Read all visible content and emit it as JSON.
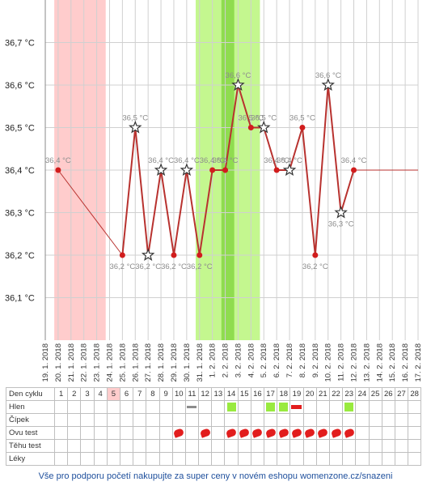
{
  "chart_data": {
    "type": "line",
    "ylabel_ticks": [
      "36,1 °C",
      "36,2 °C",
      "36,3 °C",
      "36,4 °C",
      "36,5 °C",
      "36,6 °C",
      "36,7 °C"
    ],
    "y_ticks": [
      36.1,
      36.2,
      36.3,
      36.4,
      36.5,
      36.6,
      36.7
    ],
    "ylim": [
      36.0,
      36.8
    ],
    "dates": [
      "19. 1. 2018",
      "20. 1. 2018",
      "21. 1. 2018",
      "22. 1. 2018",
      "23. 1. 2018",
      "24. 1. 2018",
      "25. 1. 2018",
      "26. 1. 2018",
      "27. 1. 2018",
      "28. 1. 2018",
      "29. 1. 2018",
      "30. 1. 2018",
      "31. 1. 2018",
      "1. 2. 2018",
      "2. 2. 2018",
      "3. 2. 2018",
      "4. 2. 2018",
      "5. 2. 2018",
      "6. 2. 2018",
      "7. 2. 2018",
      "8. 2. 2018",
      "9. 2. 2018",
      "10. 2. 2018",
      "11. 2. 2018",
      "12. 2. 2018",
      "13. 2. 2018",
      "14. 2. 2018",
      "15. 2. 2018",
      "16. 2. 2018",
      "17. 2. 2018"
    ],
    "points": [
      {
        "date_index": 1,
        "value": 36.4,
        "label": "36,4 °C",
        "star": false
      },
      {
        "date_index": 6,
        "value": 36.2,
        "label": "36,2 °C",
        "star": false
      },
      {
        "date_index": 7,
        "value": 36.5,
        "label": "36,5 °C",
        "star": true
      },
      {
        "date_index": 8,
        "value": 36.2,
        "label": "36,2 °C",
        "star": true
      },
      {
        "date_index": 9,
        "value": 36.4,
        "label": "36,4 °C",
        "star": true
      },
      {
        "date_index": 10,
        "value": 36.2,
        "label": "36,2 °C",
        "star": false
      },
      {
        "date_index": 11,
        "value": 36.4,
        "label": "36,4 °C",
        "star": true
      },
      {
        "date_index": 12,
        "value": 36.2,
        "label": "36,2 °C",
        "star": false
      },
      {
        "date_index": 13,
        "value": 36.4,
        "label": "36,4 °C",
        "star": false
      },
      {
        "date_index": 14,
        "value": 36.4,
        "label": "36,4 °C",
        "star": false
      },
      {
        "date_index": 15,
        "value": 36.6,
        "label": "36,6 °C",
        "star": true
      },
      {
        "date_index": 16,
        "value": 36.5,
        "label": "36,5 °C",
        "star": false
      },
      {
        "date_index": 17,
        "value": 36.5,
        "label": "36,5 °C",
        "star": true
      },
      {
        "date_index": 18,
        "value": 36.4,
        "label": "36,4 °C",
        "star": false
      },
      {
        "date_index": 19,
        "value": 36.4,
        "label": "36,4 °C",
        "star": true
      },
      {
        "date_index": 20,
        "value": 36.5,
        "label": "36,5 °C",
        "star": false
      },
      {
        "date_index": 21,
        "value": 36.2,
        "label": "36,2 °C",
        "star": false
      },
      {
        "date_index": 22,
        "value": 36.6,
        "label": "36,6 °C",
        "star": true
      },
      {
        "date_index": 23,
        "value": 36.3,
        "label": "36,3 °C",
        "star": true
      },
      {
        "date_index": 24,
        "value": 36.4,
        "label": "36,4 °C",
        "star": false
      }
    ],
    "trend_end": {
      "date_index": 29,
      "value": 36.4
    },
    "bands": [
      {
        "kind": "menstruation",
        "from_index": 0.7,
        "to_index": 4.7,
        "color": "#ffcccc"
      },
      {
        "kind": "fertile",
        "from_index": 11.7,
        "to_index": 16.7,
        "color": "#c4f78f"
      },
      {
        "kind": "ovulation",
        "from_index": 13.7,
        "to_index": 14.7,
        "color": "#8fdc4f"
      }
    ],
    "line_color": "#b8322f",
    "marker_color": "#d11d1d"
  },
  "table": {
    "day_row_label": "Den cyklu",
    "days": [
      "1",
      "2",
      "3",
      "4",
      "5",
      "6",
      "7",
      "8",
      "9",
      "10",
      "11",
      "12",
      "13",
      "14",
      "15",
      "16",
      "17",
      "18",
      "19",
      "20",
      "21",
      "22",
      "23",
      "24",
      "25",
      "26",
      "27",
      "28"
    ],
    "highlight_day": "5",
    "rows": [
      {
        "label": "Hlen",
        "marks": {
          "14": "green",
          "17": "green",
          "18": "green",
          "23": "green",
          "11": "gray",
          "19": "red"
        }
      },
      {
        "label": "Čípek",
        "marks": {}
      },
      {
        "label": "Ovu test",
        "marks": {
          "10": "test",
          "12": "test",
          "14": "test",
          "15": "test",
          "16": "test",
          "17": "test",
          "18": "test",
          "19": "test",
          "20": "test",
          "21": "test",
          "22": "test",
          "23": "test"
        }
      },
      {
        "label": "Těhu test",
        "marks": {}
      },
      {
        "label": "Léky",
        "marks": {}
      }
    ]
  },
  "footer": {
    "text": "Vše pro podporu početí nakupujte za super ceny v novém eshopu womenzone.cz/snazeni"
  }
}
